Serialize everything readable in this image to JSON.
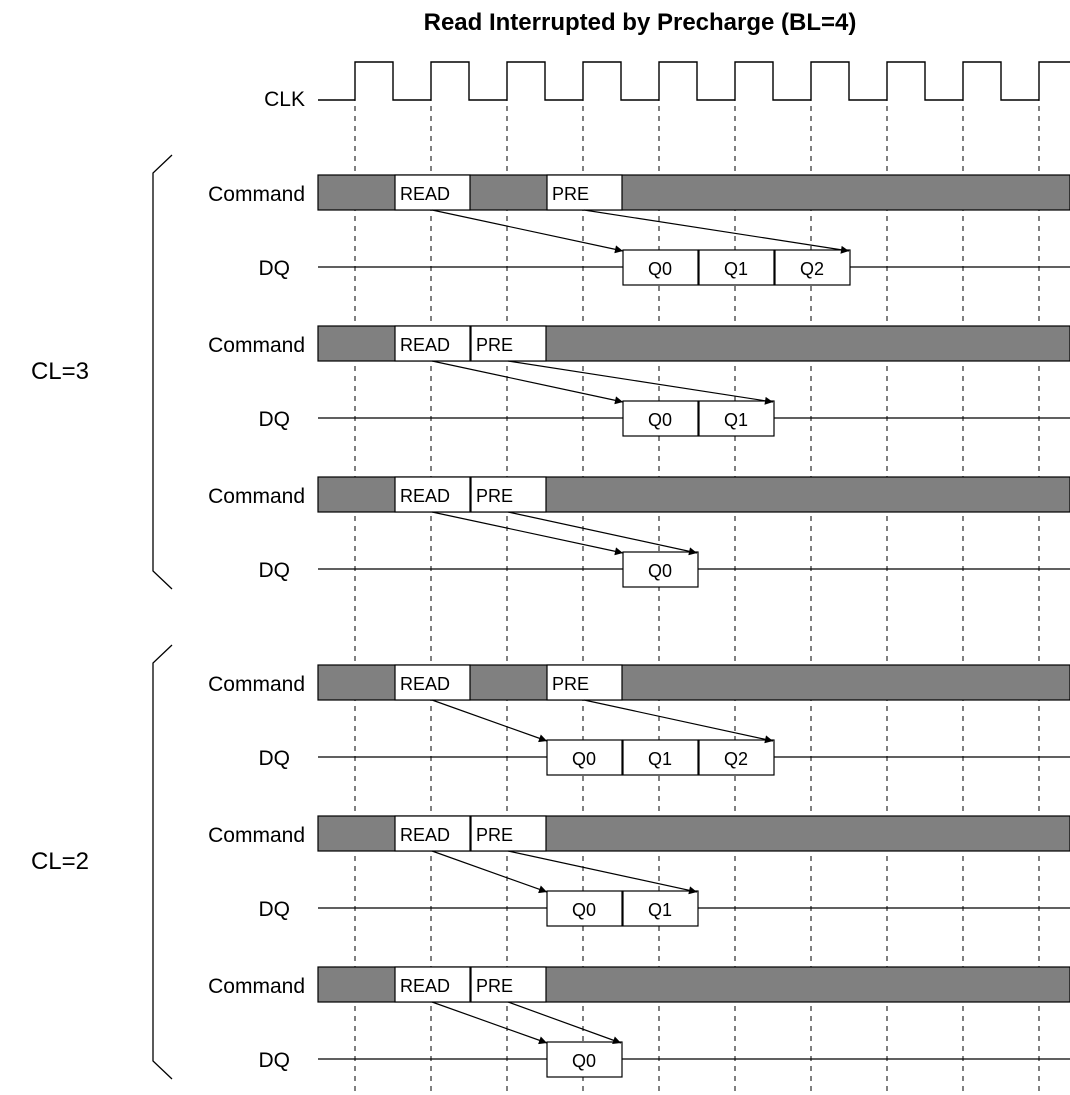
{
  "title": "Read Interrupted by Precharge (BL=4)",
  "clock": {
    "label": "CLK",
    "cycles": 10
  },
  "colors": {
    "hatch": "#808080",
    "line": "#000000",
    "box": "#ffffff"
  },
  "groups": [
    {
      "label": "CL=3",
      "cas_latency": 3,
      "rows": [
        {
          "command_label": "Command",
          "dq_label": "DQ",
          "commands": [
            {
              "text": "READ",
              "cycle": 1
            },
            {
              "text": "PRE",
              "cycle": 3
            }
          ],
          "data": [
            {
              "text": "Q0",
              "cycle": 4
            },
            {
              "text": "Q1",
              "cycle": 5
            },
            {
              "text": "Q2",
              "cycle": 6
            }
          ]
        },
        {
          "command_label": "Command",
          "dq_label": "DQ",
          "commands": [
            {
              "text": "READ",
              "cycle": 1
            },
            {
              "text": "PRE",
              "cycle": 2
            }
          ],
          "data": [
            {
              "text": "Q0",
              "cycle": 4
            },
            {
              "text": "Q1",
              "cycle": 5
            }
          ]
        },
        {
          "command_label": "Command",
          "dq_label": "DQ",
          "commands": [
            {
              "text": "READ",
              "cycle": 1
            },
            {
              "text": "PRE",
              "cycle": 2
            }
          ],
          "data": [
            {
              "text": "Q0",
              "cycle": 4
            }
          ]
        }
      ]
    },
    {
      "label": "CL=2",
      "cas_latency": 2,
      "rows": [
        {
          "command_label": "Command",
          "dq_label": "DQ",
          "commands": [
            {
              "text": "READ",
              "cycle": 1
            },
            {
              "text": "PRE",
              "cycle": 3
            }
          ],
          "data": [
            {
              "text": "Q0",
              "cycle": 3
            },
            {
              "text": "Q1",
              "cycle": 4
            },
            {
              "text": "Q2",
              "cycle": 5
            }
          ]
        },
        {
          "command_label": "Command",
          "dq_label": "DQ",
          "commands": [
            {
              "text": "READ",
              "cycle": 1
            },
            {
              "text": "PRE",
              "cycle": 2
            }
          ],
          "data": [
            {
              "text": "Q0",
              "cycle": 3
            },
            {
              "text": "Q1",
              "cycle": 4
            }
          ]
        },
        {
          "command_label": "Command",
          "dq_label": "DQ",
          "commands": [
            {
              "text": "READ",
              "cycle": 1
            },
            {
              "text": "PRE",
              "cycle": 2
            }
          ],
          "data": [
            {
              "text": "Q0",
              "cycle": 3
            }
          ]
        }
      ]
    }
  ]
}
